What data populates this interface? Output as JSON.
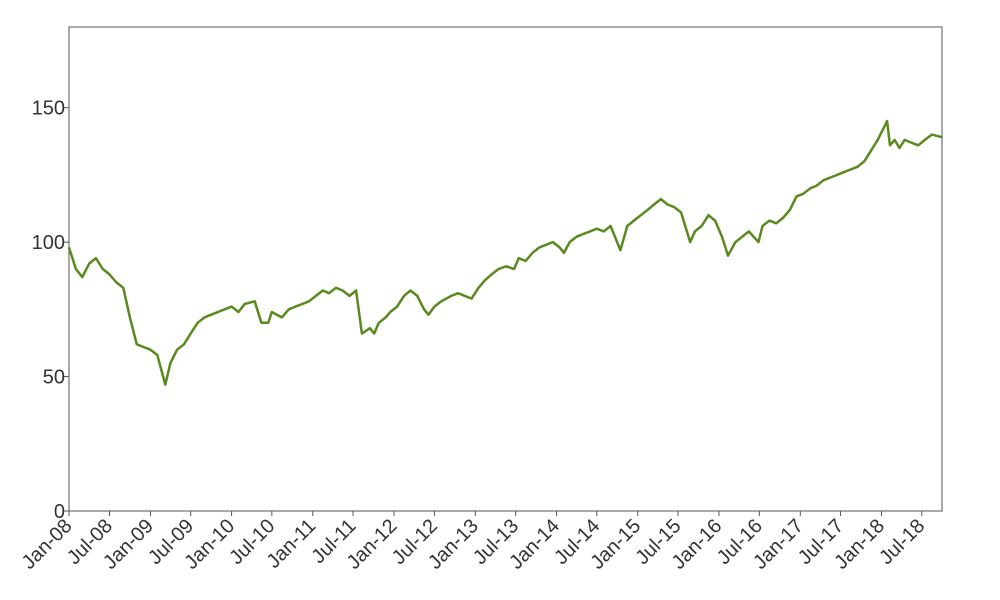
{
  "chart_data": {
    "type": "line",
    "title": "",
    "xlabel": "",
    "ylabel": "",
    "ylim": [
      0,
      180
    ],
    "xlim": [
      "2008-01-01",
      "2018-09-30"
    ],
    "grid": false,
    "legend": "none",
    "y_ticks": [
      0,
      50,
      100,
      150
    ],
    "y_tick_labels": [
      "0",
      "50",
      "100",
      "150"
    ],
    "x_ticks": [
      "2008-01-01",
      "2008-07-01",
      "2009-01-01",
      "2009-07-01",
      "2010-01-01",
      "2010-07-01",
      "2011-01-01",
      "2011-07-01",
      "2012-01-01",
      "2012-07-01",
      "2013-01-01",
      "2013-07-01",
      "2014-01-01",
      "2014-07-01",
      "2015-01-01",
      "2015-07-01",
      "2016-01-01",
      "2016-07-01",
      "2017-01-01",
      "2017-07-01",
      "2018-01-01",
      "2018-07-01"
    ],
    "x_tick_labels": [
      "Jan-08",
      "Jul-08",
      "Jan-09",
      "Jul-09",
      "Jan-10",
      "Jul-10",
      "Jan-11",
      "Jul-11",
      "Jan-12",
      "Jul-12",
      "Jan-13",
      "Jul-13",
      "Jan-14",
      "Jul-14",
      "Jan-15",
      "Jul-15",
      "Jan-16",
      "Jul-16",
      "Jan-17",
      "Jul-17",
      "Jan-18",
      "Jul-18"
    ],
    "series": [
      {
        "color": "#5a8a1e",
        "x": [
          "2008-01-01",
          "2008-02-01",
          "2008-03-01",
          "2008-04-01",
          "2008-05-01",
          "2008-06-01",
          "2008-07-01",
          "2008-08-01",
          "2008-09-01",
          "2008-10-01",
          "2008-11-01",
          "2008-12-01",
          "2009-01-01",
          "2009-02-01",
          "2009-03-09",
          "2009-04-01",
          "2009-05-01",
          "2009-06-01",
          "2009-07-01",
          "2009-08-01",
          "2009-09-01",
          "2009-10-01",
          "2009-11-01",
          "2009-12-01",
          "2010-01-01",
          "2010-02-01",
          "2010-03-01",
          "2010-04-15",
          "2010-05-15",
          "2010-06-15",
          "2010-07-01",
          "2010-08-15",
          "2010-09-15",
          "2010-10-15",
          "2010-11-15",
          "2010-12-15",
          "2011-01-15",
          "2011-02-15",
          "2011-03-15",
          "2011-04-15",
          "2011-05-15",
          "2011-06-15",
          "2011-07-15",
          "2011-08-10",
          "2011-09-15",
          "2011-10-04",
          "2011-10-25",
          "2011-11-25",
          "2011-12-15",
          "2012-01-15",
          "2012-02-15",
          "2012-03-15",
          "2012-04-15",
          "2012-05-15",
          "2012-06-04",
          "2012-07-01",
          "2012-08-01",
          "2012-09-15",
          "2012-10-15",
          "2012-11-15",
          "2012-12-15",
          "2013-01-15",
          "2013-02-15",
          "2013-03-15",
          "2013-04-15",
          "2013-05-20",
          "2013-06-24",
          "2013-07-15",
          "2013-08-15",
          "2013-09-15",
          "2013-10-15",
          "2013-11-15",
          "2013-12-15",
          "2014-01-15",
          "2014-02-03",
          "2014-03-01",
          "2014-04-01",
          "2014-05-01",
          "2014-06-01",
          "2014-07-01",
          "2014-08-01",
          "2014-09-01",
          "2014-10-15",
          "2014-11-15",
          "2014-12-15",
          "2015-01-15",
          "2015-02-15",
          "2015-03-15",
          "2015-04-15",
          "2015-05-15",
          "2015-06-15",
          "2015-07-15",
          "2015-08-25",
          "2015-09-15",
          "2015-10-15",
          "2015-11-15",
          "2015-12-15",
          "2016-01-15",
          "2016-02-11",
          "2016-03-15",
          "2016-04-15",
          "2016-05-15",
          "2016-06-27",
          "2016-07-15",
          "2016-08-15",
          "2016-09-15",
          "2016-10-15",
          "2016-11-15",
          "2016-12-15",
          "2017-01-15",
          "2017-02-15",
          "2017-03-15",
          "2017-04-15",
          "2017-05-15",
          "2017-06-15",
          "2017-07-15",
          "2017-08-15",
          "2017-09-15",
          "2017-10-15",
          "2017-11-15",
          "2017-12-15",
          "2018-01-26",
          "2018-02-08",
          "2018-03-01",
          "2018-03-23",
          "2018-04-15",
          "2018-05-15",
          "2018-06-15",
          "2018-07-15",
          "2018-08-15",
          "2018-09-30"
        ],
        "y": [
          98,
          90,
          87,
          92,
          94,
          90,
          88,
          85,
          83,
          72,
          62,
          61,
          60,
          58,
          47,
          55,
          60,
          62,
          66,
          70,
          72,
          73,
          74,
          75,
          76,
          74,
          77,
          78,
          70,
          70,
          74,
          72,
          75,
          76,
          77,
          78,
          80,
          82,
          81,
          83,
          82,
          80,
          82,
          66,
          68,
          66,
          70,
          72,
          74,
          76,
          80,
          82,
          80,
          75,
          73,
          76,
          78,
          80,
          81,
          80,
          79,
          83,
          86,
          88,
          90,
          91,
          90,
          94,
          93,
          96,
          98,
          99,
          100,
          98,
          96,
          100,
          102,
          103,
          104,
          105,
          104,
          106,
          97,
          106,
          108,
          110,
          112,
          114,
          116,
          114,
          113,
          111,
          100,
          104,
          106,
          110,
          108,
          102,
          95,
          100,
          102,
          104,
          100,
          106,
          108,
          107,
          109,
          112,
          117,
          118,
          120,
          121,
          123,
          124,
          125,
          126,
          127,
          128,
          130,
          134,
          138,
          145,
          136,
          138,
          135,
          138,
          137,
          136,
          138,
          140,
          139
        ]
      }
    ]
  }
}
